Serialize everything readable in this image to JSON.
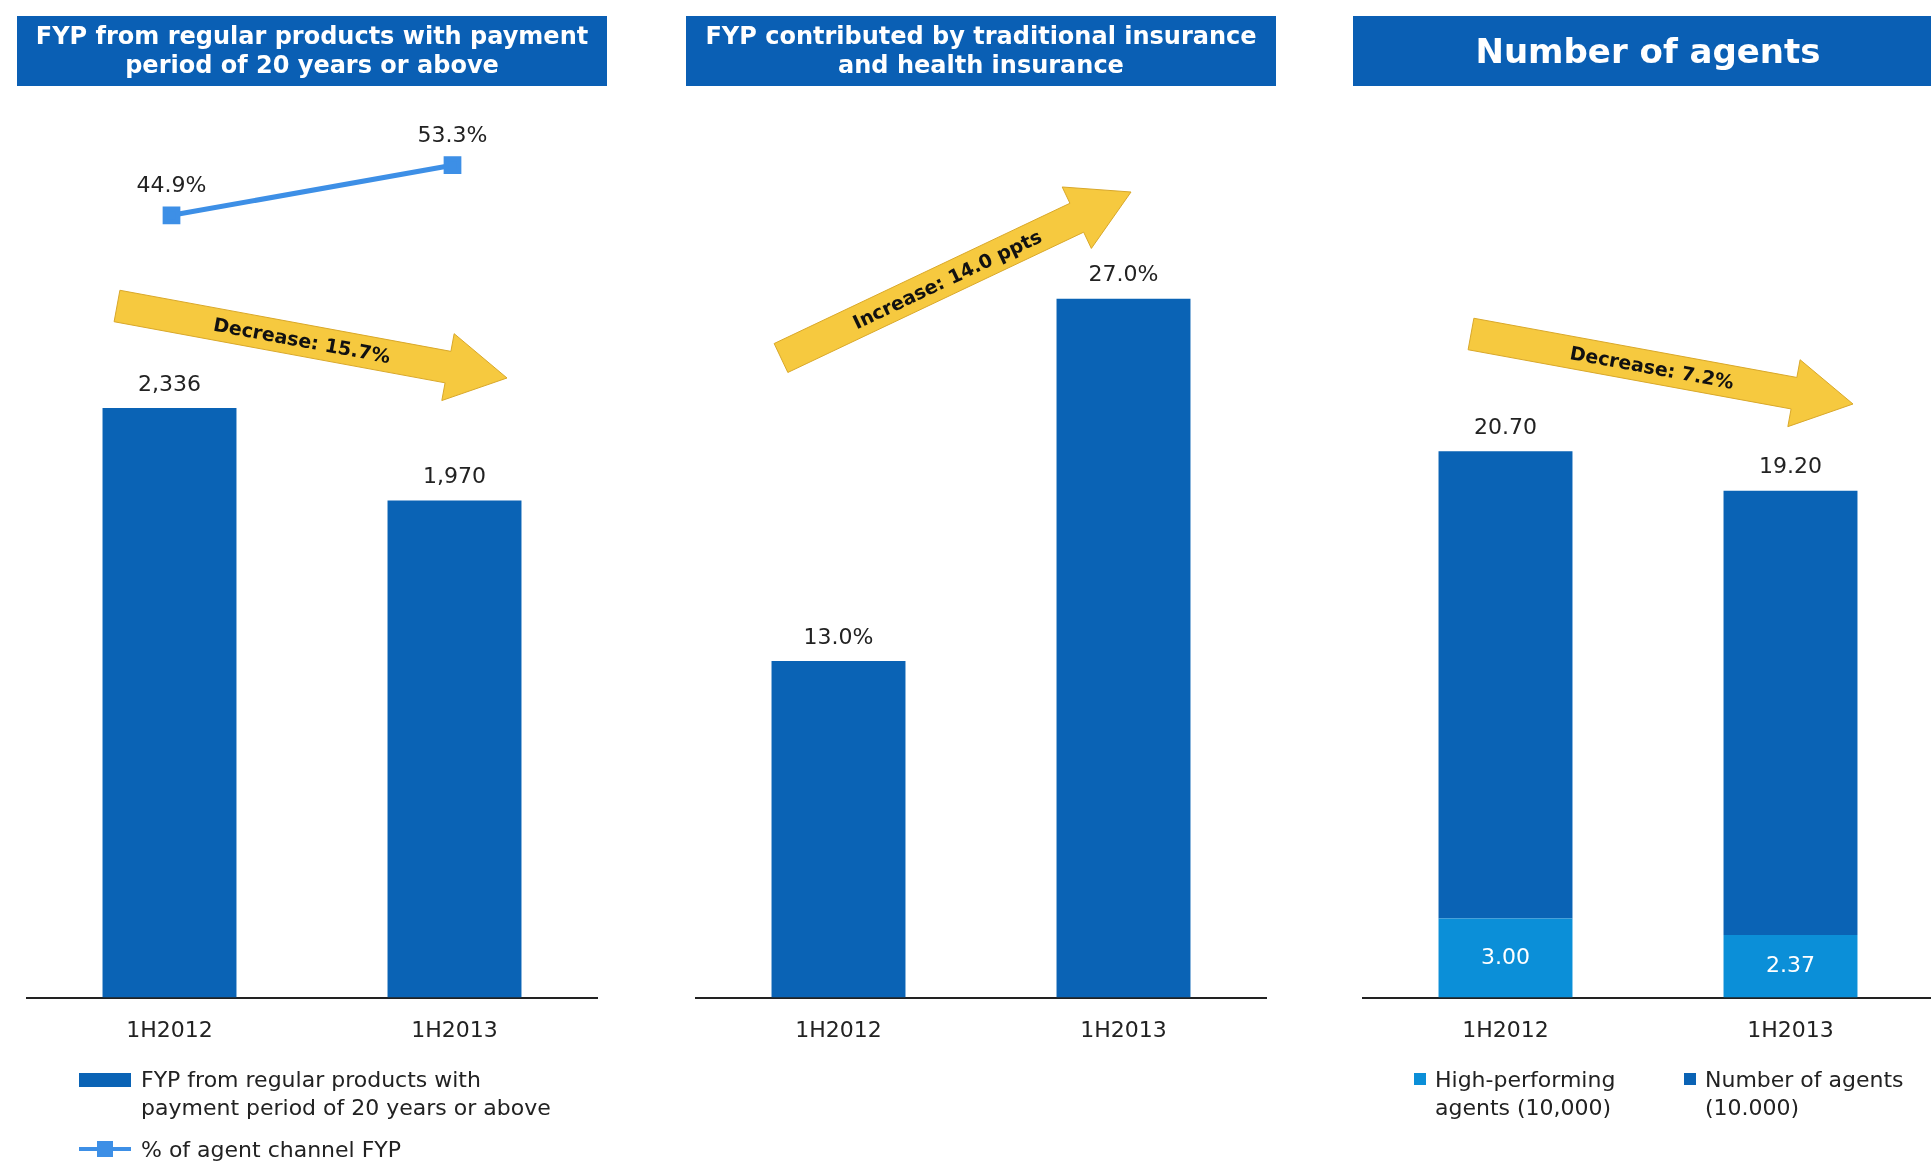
{
  "chart_data": [
    {
      "type": "line",
      "title": "FYP from regular products with payment period of 20 years or above",
      "categories": [
        null,
        null
      ],
      "tick_labels": false,
      "legend": "bottom",
      "marker": "square",
      "series": [
        {
          "name": "% of agent channel FYP",
          "color": "#3d8fe6",
          "values": [
            44.9,
            53.3
          ],
          "value_labels": [
            "44.9%",
            "53.3%"
          ]
        }
      ]
    },
    {
      "type": "bar",
      "categories": [
        "1H2012",
        "1H2013"
      ],
      "legend": "bottom",
      "annotations": [
        "Decrease: 15.7%"
      ],
      "series": [
        {
          "name": "FYP from regular products with payment period of 20 years or above",
          "color": "#0a63b5",
          "values": [
            2336,
            1970
          ],
          "value_labels": [
            "2,336",
            "1,970"
          ]
        }
      ]
    },
    {
      "type": "bar",
      "title": "FYP contributed by traditional insurance and health insurance",
      "categories": [
        "1H2012",
        "1H2013"
      ],
      "annotations": [
        "Increase: 14.0 ppts"
      ],
      "series": [
        {
          "color": "#0a63b5",
          "values": [
            13.0,
            27.0
          ],
          "value_labels": [
            "13.0%",
            "27.0%"
          ]
        }
      ]
    },
    {
      "type": "bar",
      "title": "Number of agents",
      "categories": [
        "1H2012",
        "1H2013"
      ],
      "stacked": true,
      "legend": "bottom",
      "annotations": [
        "Decrease: 7.2%"
      ],
      "totals": [
        "20.70",
        "19.20"
      ],
      "series": [
        {
          "name": "High-performing agents (10,000)",
          "color": "#0b8fd8",
          "values": [
            3.0,
            2.37
          ],
          "value_labels": [
            "3.00",
            "2.37"
          ]
        },
        {
          "name": "Number of agents (10.000)",
          "color": "#0a63b5",
          "values": [
            17.7,
            16.83
          ]
        }
      ]
    }
  ]
}
